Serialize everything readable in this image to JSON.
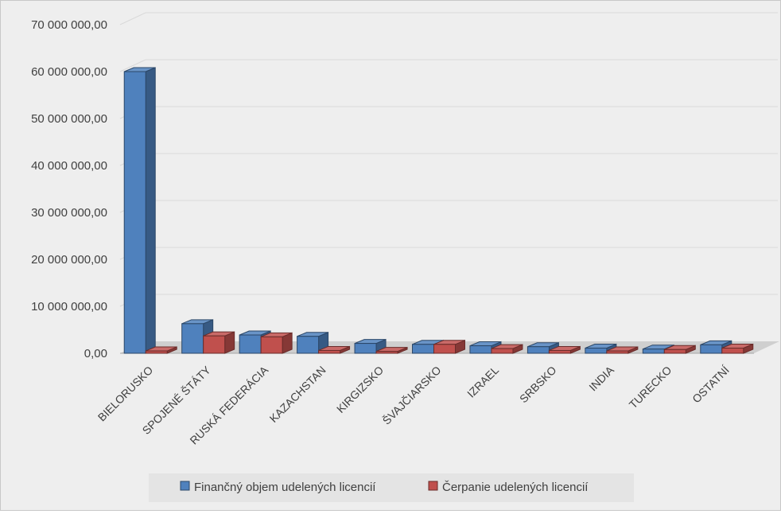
{
  "chart_data": {
    "type": "bar",
    "title": "",
    "xlabel": "",
    "ylabel": "",
    "ylim": [
      0,
      70000000
    ],
    "y_tick_labels": [
      "0,00",
      "10 000 000,00",
      "20 000 000,00",
      "30 000 000,00",
      "40 000 000,00",
      "50 000 000,00",
      "60 000 000,00",
      "70 000 000,00"
    ],
    "y_tick_values": [
      0,
      10000000,
      20000000,
      30000000,
      40000000,
      50000000,
      60000000,
      70000000
    ],
    "categories": [
      "BIELORUSKO",
      "SPOJENÉ ŠTÁTY",
      "RUSKÁ FEDERÁCIA",
      "KAZACHSTAN",
      "KIRGIZSKO",
      "ŠVAJČIARSKO",
      "IZRAEL",
      "SRBSKO",
      "INDIA",
      "TURECKO",
      "OSTATNÍ"
    ],
    "series": [
      {
        "name": "Finančný objem udelených licencií",
        "color": "#4F81BD",
        "values": [
          60000000,
          6300000,
          3900000,
          3600000,
          2100000,
          1900000,
          1600000,
          1400000,
          1100000,
          900000,
          1800000
        ]
      },
      {
        "name": "Čerpanie udelených licencií",
        "color": "#C0504D",
        "values": [
          500000,
          3700000,
          3500000,
          600000,
          400000,
          1900000,
          1000000,
          600000,
          500000,
          800000,
          1100000
        ]
      }
    ],
    "grid": true,
    "legend_position": "bottom",
    "style": "3d-clustered-column"
  }
}
